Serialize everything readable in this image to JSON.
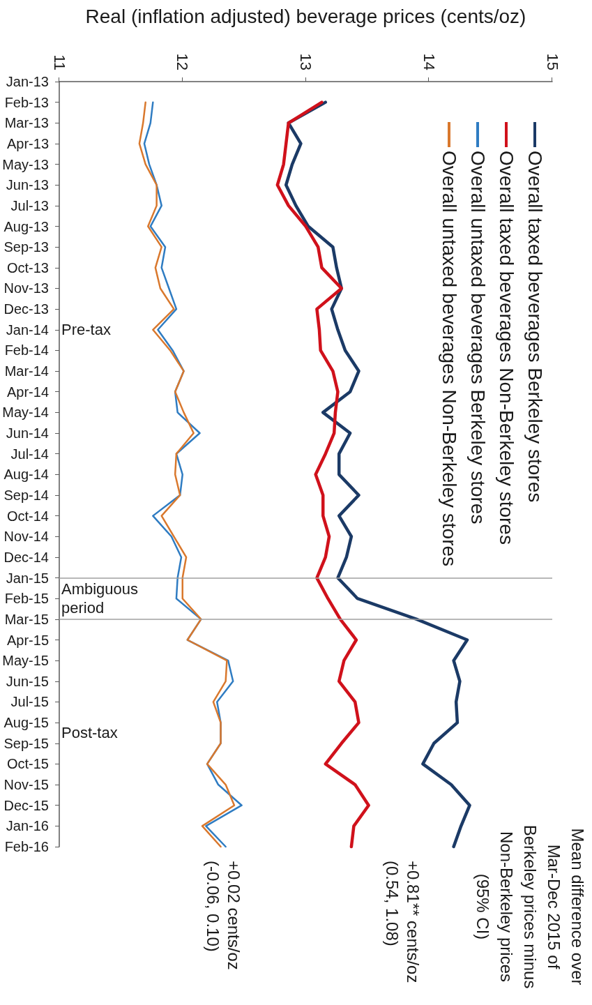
{
  "chart_data": {
    "type": "line",
    "orientation": "horizontal",
    "xlabel": "Real (inflation adjusted) beverage prices (cents/oz)",
    "categories": [
      "Jan-13",
      "Feb-13",
      "Mar-13",
      "Apr-13",
      "May-13",
      "Jun-13",
      "Jul-13",
      "Aug-13",
      "Sep-13",
      "Oct-13",
      "Nov-13",
      "Dec-13",
      "Jan-14",
      "Feb-14",
      "Mar-14",
      "Apr-14",
      "May-14",
      "Jun-14",
      "Jul-14",
      "Aug-14",
      "Sep-14",
      "Oct-14",
      "Nov-14",
      "Dec-14",
      "Jan-15",
      "Feb-15",
      "Mar-15",
      "Apr-15",
      "May-15",
      "Jun-15",
      "Jul-15",
      "Aug-15",
      "Sep-15",
      "Oct-15",
      "Nov-15",
      "Dec-15",
      "Jan-16",
      "Feb-16"
    ],
    "series": [
      {
        "name": "Overall taxed beverages Berkeley stores",
        "color": "#1b3a66",
        "values": [
          null,
          13.16,
          12.86,
          12.96,
          12.89,
          12.84,
          12.92,
          13.02,
          13.22,
          13.25,
          13.29,
          13.21,
          13.26,
          13.32,
          13.43,
          13.36,
          13.14,
          13.36,
          13.27,
          13.27,
          13.43,
          13.27,
          13.37,
          13.33,
          13.26,
          13.42,
          13.9,
          14.31,
          14.2,
          14.25,
          14.22,
          14.23,
          14.04,
          13.95,
          14.18,
          14.33,
          14.26,
          14.2
        ]
      },
      {
        "name": "Overall taxed beverages Non-Berkeley stores",
        "color": "#d0111b",
        "values": [
          null,
          13.13,
          12.86,
          12.84,
          12.82,
          12.77,
          12.86,
          13.0,
          13.1,
          13.13,
          13.29,
          13.09,
          13.11,
          13.12,
          13.22,
          13.26,
          13.24,
          13.23,
          13.16,
          13.08,
          13.14,
          13.14,
          13.19,
          13.16,
          13.09,
          13.18,
          13.28,
          13.41,
          13.31,
          13.27,
          13.4,
          13.43,
          13.29,
          13.16,
          13.4,
          13.51,
          13.39,
          13.37
        ]
      },
      {
        "name": "Overall untaxed beverages Berkeley stores",
        "color": "#2f7cc2",
        "values": [
          null,
          11.76,
          11.74,
          11.69,
          11.73,
          11.79,
          11.83,
          11.74,
          11.86,
          11.83,
          11.89,
          11.95,
          11.8,
          11.92,
          12.01,
          11.94,
          11.96,
          12.14,
          11.95,
          12.0,
          11.98,
          11.76,
          11.91,
          11.99,
          11.96,
          11.95,
          12.15,
          12.04,
          12.37,
          12.41,
          12.28,
          12.31,
          12.31,
          12.2,
          12.29,
          12.48,
          12.19,
          12.35
        ]
      },
      {
        "name": "Overall untaxed beverages Non-Berkeley stores",
        "color": "#d9782d",
        "values": [
          null,
          11.7,
          11.68,
          11.65,
          11.7,
          11.79,
          11.79,
          11.72,
          11.83,
          11.78,
          11.82,
          11.93,
          11.76,
          11.9,
          12.01,
          11.94,
          12.01,
          12.09,
          11.95,
          11.94,
          11.98,
          11.83,
          11.93,
          12.03,
          12.0,
          12.0,
          12.15,
          12.04,
          12.36,
          12.35,
          12.25,
          12.31,
          12.31,
          12.2,
          12.35,
          12.42,
          12.16,
          12.31
        ]
      }
    ],
    "xlim": [
      11,
      15
    ],
    "xticks": [
      11,
      12,
      13,
      14,
      15
    ],
    "legend": "top right",
    "ref_lines": [
      {
        "axis": "y",
        "value": "Jan-15",
        "color": "#a0a0a0"
      },
      {
        "axis": "y",
        "value": "Mar-15",
        "color": "#a0a0a0"
      }
    ],
    "annotations": [
      "Pre-tax",
      "Ambiguous\nperiod",
      "Post-tax",
      "+0.02 cents/oz\n(-0.06, 0.10)",
      "+0.81** cents/oz\n(0.54, 1.08)",
      "Mean difference over\nMar-Dec 2015 of\nBerkeley prices minus\nNon-Berkeley prices\n(95% CI)"
    ]
  }
}
